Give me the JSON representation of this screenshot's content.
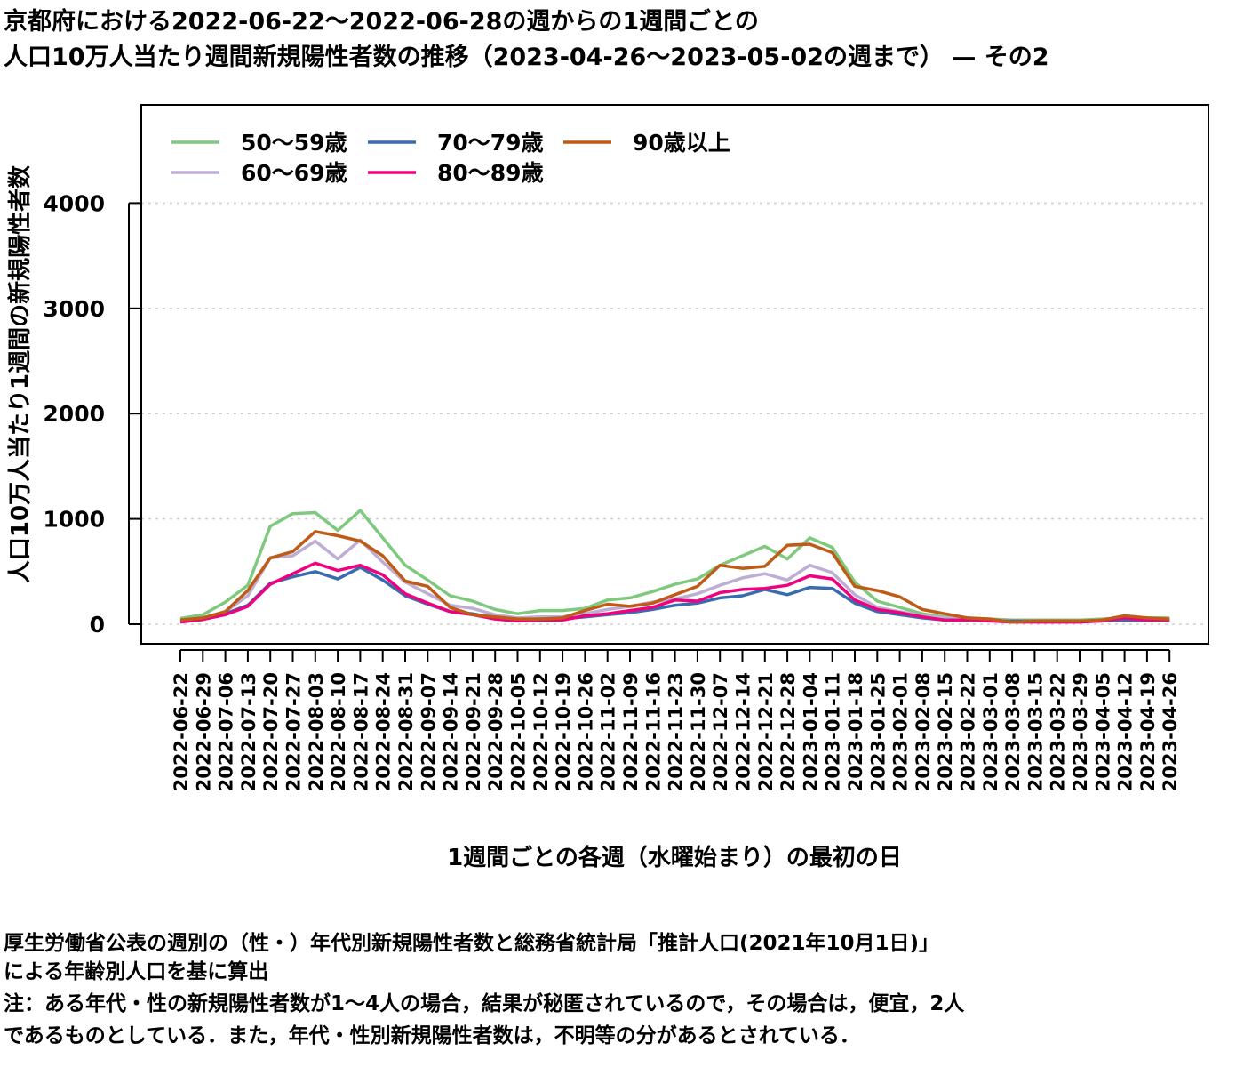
{
  "title_line1": "京都府における2022-06-22〜2022-06-28の週からの1週間ごとの",
  "title_line2": "人口10万人当たり週間新規陽性者数の推移（2023-04-26〜2023-05-02の週まで） — その2",
  "notes": [
    "厚生労働省公表の週別の（性・）年代別新規陽性者数と総務省統計局「推計人口(2021年10月1日)」",
    "による年齢別人口を基に算出",
    "注：ある年代・性の新規陽性者数が1〜4人の場合，結果が秘匿されているので，その場合は，便宜，2人",
    "であるものとしている．また，年代・性別新規陽性者数は，不明等の分があるとされている．"
  ],
  "chart_data": {
    "type": "line",
    "title": "京都府における2022-06-22〜2022-06-28の週からの1週間ごとの 人口10万人当たり週間新規陽性者数の推移（2023-04-26〜2023-05-02の週まで） — その2",
    "xlabel": "1週間ごとの各週（水曜始まり）の最初の日",
    "ylabel": "人口10万人当たり1週間の新規陽性者数",
    "ylim": [
      -200,
      4900
    ],
    "yticks": [
      0,
      1000,
      2000,
      3000,
      4000
    ],
    "grid": "horizontal dotted",
    "legend_position": "top-left",
    "x": [
      "2022-06-22",
      "2022-06-29",
      "2022-07-06",
      "2022-07-13",
      "2022-07-20",
      "2022-07-27",
      "2022-08-03",
      "2022-08-10",
      "2022-08-17",
      "2022-08-24",
      "2022-08-31",
      "2022-09-07",
      "2022-09-14",
      "2022-09-21",
      "2022-09-28",
      "2022-10-05",
      "2022-10-12",
      "2022-10-19",
      "2022-10-26",
      "2022-11-02",
      "2022-11-09",
      "2022-11-16",
      "2022-11-23",
      "2022-11-30",
      "2022-12-07",
      "2022-12-14",
      "2022-12-21",
      "2022-12-28",
      "2023-01-04",
      "2023-01-11",
      "2023-01-18",
      "2023-01-25",
      "2023-02-01",
      "2023-02-08",
      "2023-02-15",
      "2023-02-22",
      "2023-03-01",
      "2023-03-08",
      "2023-03-15",
      "2023-03-22",
      "2023-03-29",
      "2023-04-05",
      "2023-04-12",
      "2023-04-19",
      "2023-04-26"
    ],
    "series": [
      {
        "name": "50〜59歳",
        "color": "#7fc97f",
        "values": [
          55,
          90,
          210,
          370,
          930,
          1050,
          1060,
          890,
          1080,
          820,
          560,
          420,
          270,
          220,
          140,
          100,
          130,
          130,
          150,
          230,
          250,
          310,
          380,
          430,
          560,
          650,
          740,
          620,
          820,
          730,
          400,
          220,
          160,
          100,
          70,
          60,
          50,
          40,
          40,
          40,
          40,
          50,
          60,
          60,
          60
        ]
      },
      {
        "name": "60〜69歳",
        "color": "#beaed4",
        "values": [
          35,
          60,
          120,
          270,
          630,
          650,
          790,
          620,
          800,
          590,
          400,
          290,
          180,
          150,
          90,
          60,
          70,
          70,
          100,
          140,
          170,
          210,
          240,
          290,
          370,
          440,
          480,
          420,
          560,
          490,
          280,
          160,
          120,
          80,
          60,
          50,
          40,
          30,
          30,
          30,
          30,
          40,
          50,
          50,
          50
        ]
      },
      {
        "name": "70〜79歳",
        "color": "#386cb0",
        "values": [
          25,
          50,
          100,
          180,
          390,
          450,
          500,
          430,
          540,
          420,
          270,
          190,
          120,
          100,
          60,
          40,
          50,
          50,
          70,
          90,
          110,
          140,
          180,
          200,
          250,
          270,
          330,
          280,
          350,
          340,
          200,
          120,
          90,
          60,
          40,
          40,
          30,
          30,
          30,
          30,
          30,
          30,
          40,
          40,
          40
        ]
      },
      {
        "name": "80〜89歳",
        "color": "#f0027f",
        "values": [
          20,
          45,
          90,
          170,
          380,
          480,
          580,
          510,
          560,
          470,
          290,
          200,
          120,
          90,
          50,
          30,
          40,
          40,
          80,
          100,
          130,
          160,
          230,
          220,
          300,
          330,
          340,
          370,
          460,
          430,
          230,
          140,
          110,
          70,
          40,
          40,
          30,
          20,
          20,
          20,
          20,
          30,
          60,
          40,
          40
        ]
      },
      {
        "name": "90歳以上",
        "color": "#bf5b17",
        "values": [
          40,
          60,
          120,
          320,
          630,
          690,
          880,
          840,
          790,
          650,
          410,
          360,
          160,
          90,
          70,
          50,
          50,
          60,
          130,
          190,
          170,
          200,
          280,
          360,
          560,
          530,
          550,
          750,
          760,
          680,
          360,
          320,
          260,
          140,
          100,
          60,
          50,
          20,
          30,
          30,
          30,
          40,
          80,
          60,
          50
        ]
      }
    ]
  }
}
